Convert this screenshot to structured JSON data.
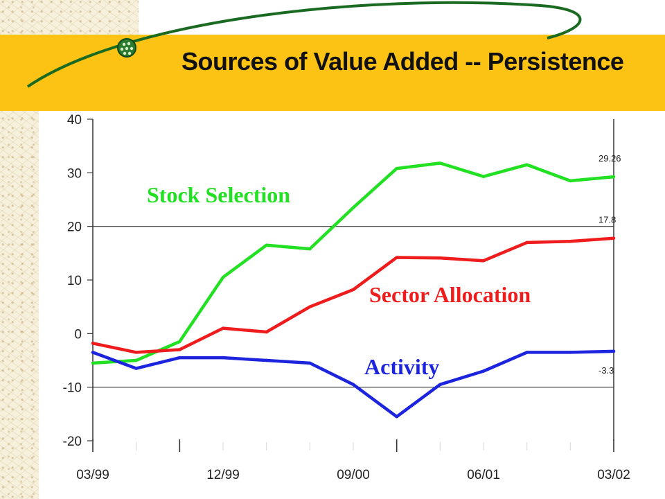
{
  "slide": {
    "title": "Sources of Value Added -- Persistence"
  },
  "colors": {
    "banner": "#fcc314",
    "stock_selection": "#22e022",
    "sector_allocation": "#ee1c1c",
    "activity": "#1c24dd"
  },
  "chart_data": {
    "type": "line",
    "title": "",
    "xlabel": "",
    "ylabel": "",
    "ylim": [
      -20,
      40
    ],
    "yticks": [
      -20,
      -10,
      0,
      10,
      20,
      30,
      40
    ],
    "x": [
      "03/99",
      "06/99",
      "09/99",
      "12/99",
      "03/00",
      "06/00",
      "09/00",
      "12/00",
      "03/01",
      "06/01",
      "09/01",
      "12/01",
      "03/02"
    ],
    "xtick_labels": [
      {
        "index": 0,
        "label": "03/99"
      },
      {
        "index": 3,
        "label": "12/99"
      },
      {
        "index": 6,
        "label": "09/00"
      },
      {
        "index": 9,
        "label": "06/01"
      },
      {
        "index": 12,
        "label": "03/02"
      }
    ],
    "major_x_ticks": [
      0,
      2,
      7,
      12
    ],
    "horizontal_gridlines": [
      -10,
      20
    ],
    "series": [
      {
        "name": "Stock Selection",
        "color": "#22e022",
        "values": [
          -5.5,
          -5,
          -1.5,
          10.5,
          16.5,
          15.8,
          23.5,
          30.8,
          31.8,
          29.3,
          31.5,
          28.5,
          29.26
        ],
        "end_label": "29.26"
      },
      {
        "name": "Sector Allocation",
        "color": "#ee1c1c",
        "values": [
          -1.8,
          -3.5,
          -3,
          1,
          0.3,
          5,
          8.2,
          14.2,
          14.1,
          13.6,
          17,
          17.2,
          17.8
        ],
        "end_label": "17.8"
      },
      {
        "name": "Activity",
        "color": "#1c24dd",
        "values": [
          -3.5,
          -6.5,
          -4.5,
          -4.5,
          -5,
          -5.5,
          -9.5,
          -15.5,
          -9.5,
          -7,
          -3.5,
          -3.5,
          -3.3
        ],
        "end_label": "-3.3"
      }
    ]
  }
}
